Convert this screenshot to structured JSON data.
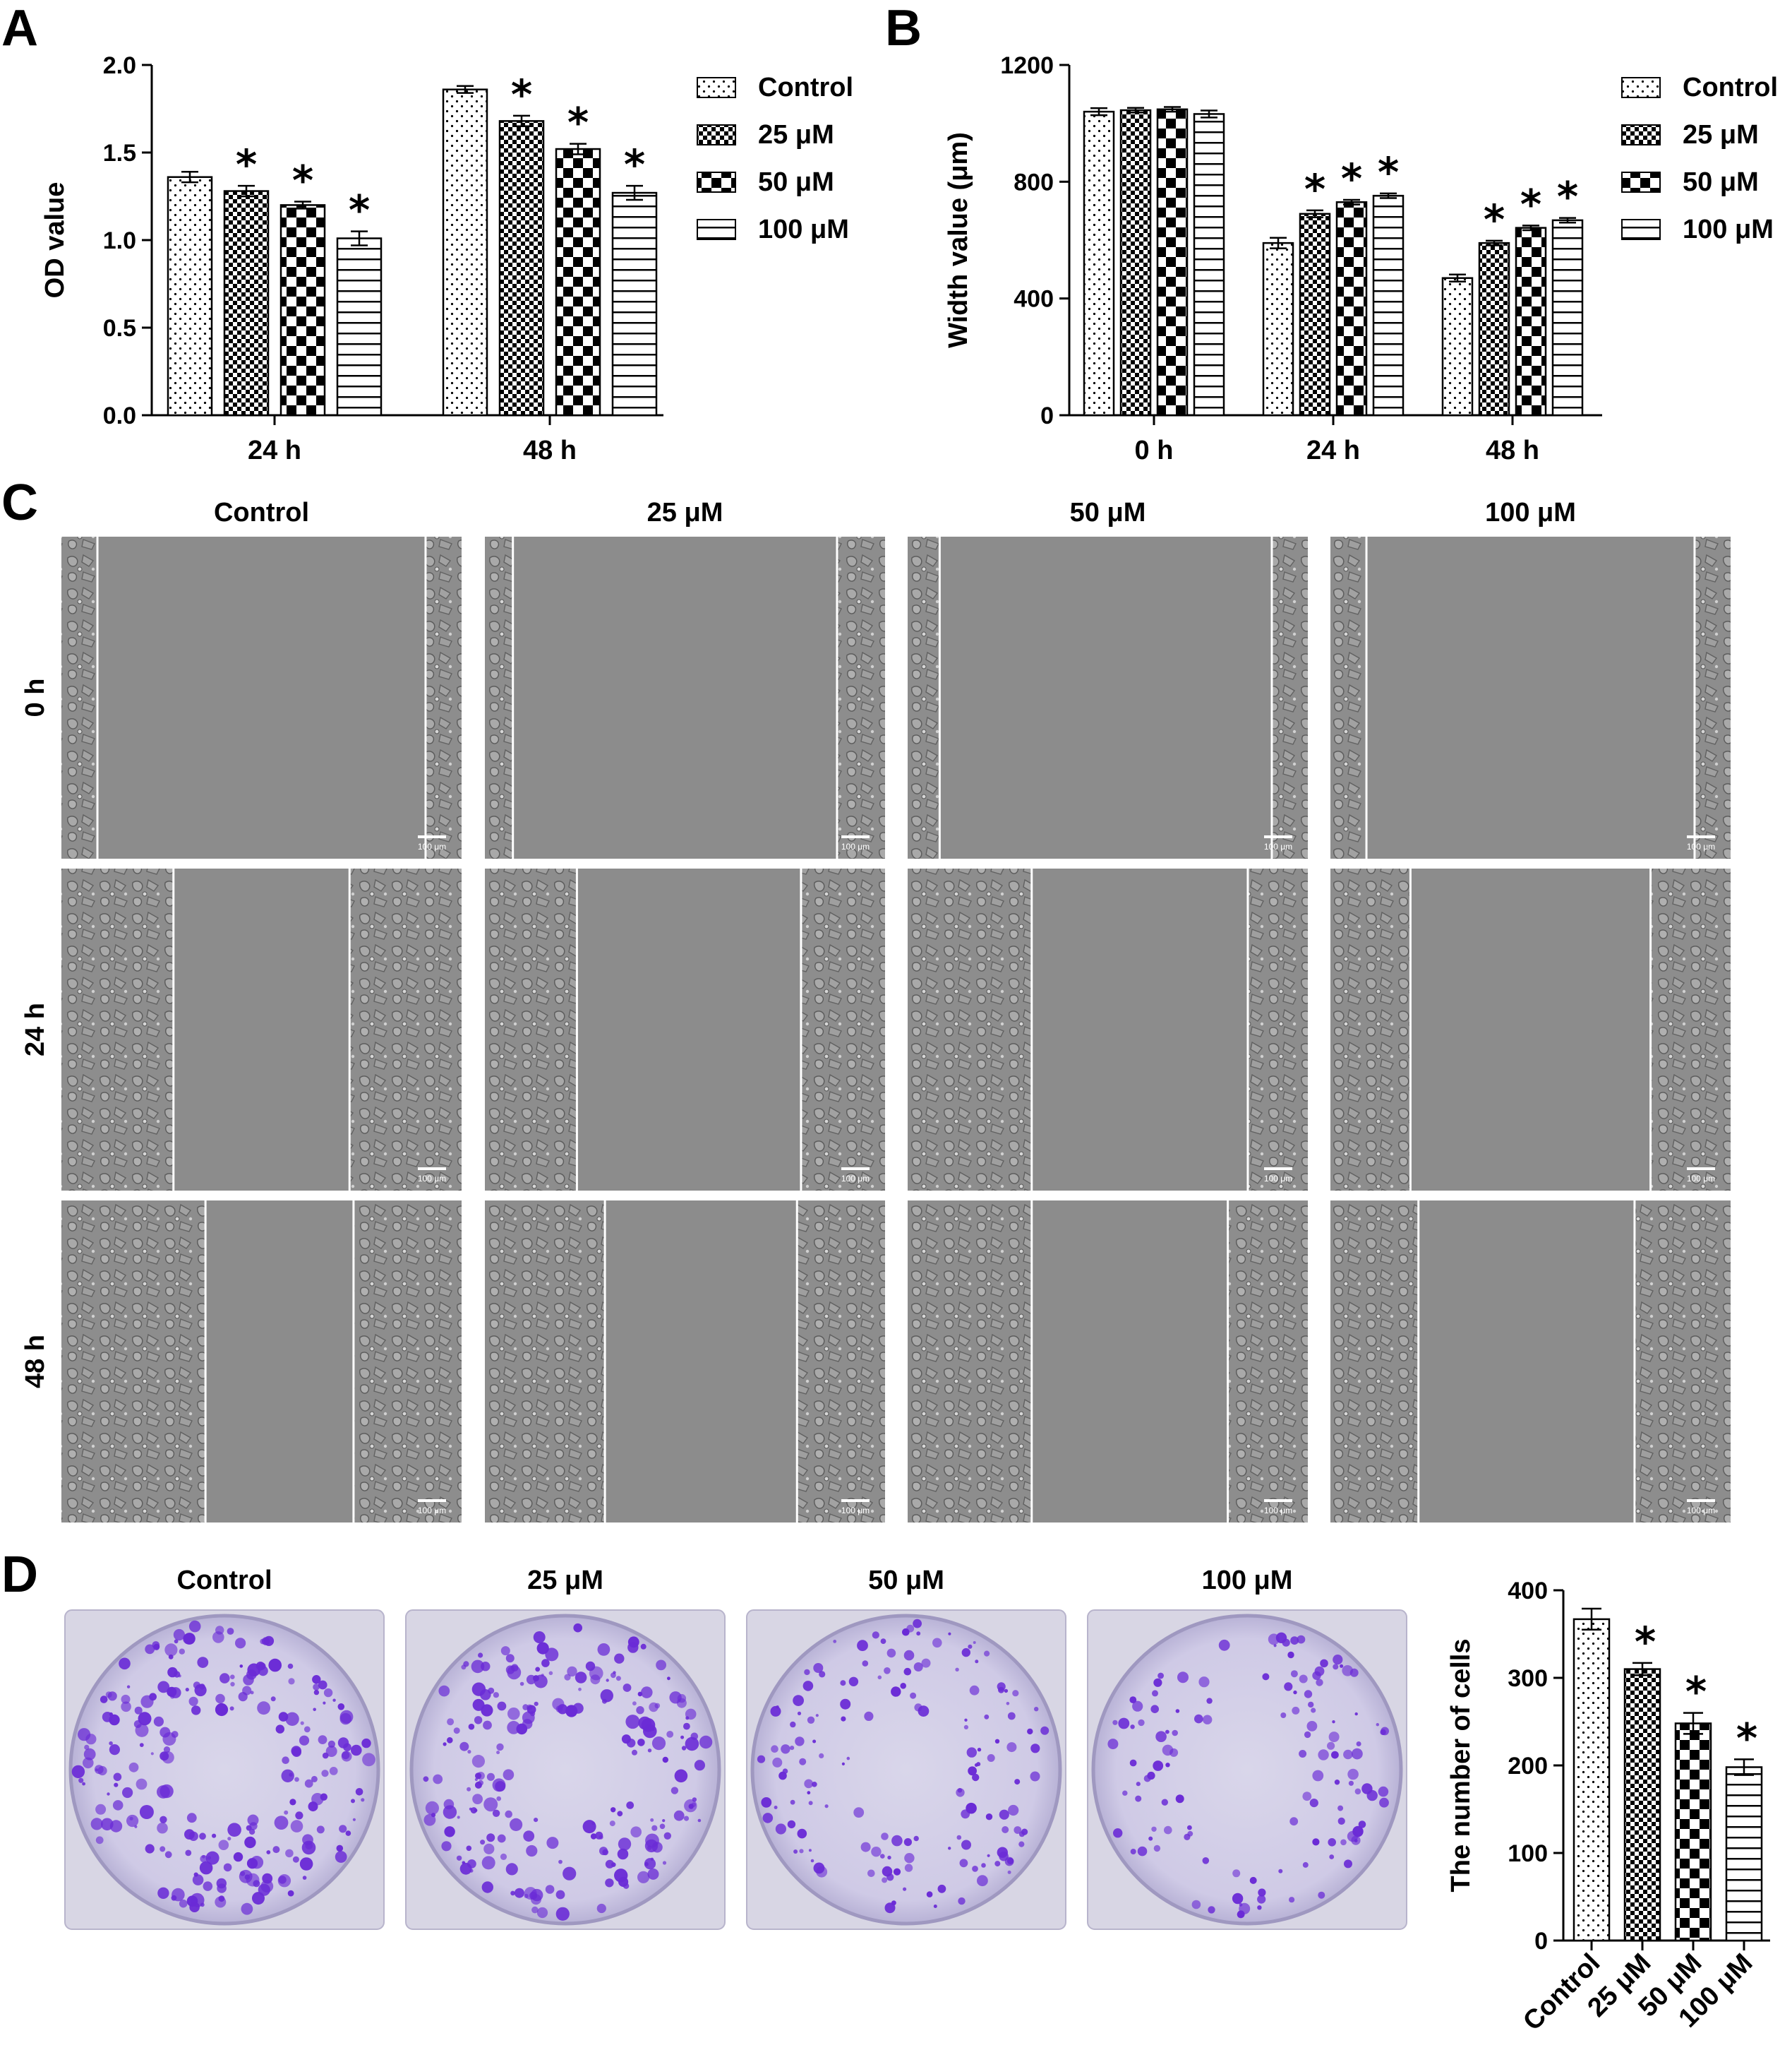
{
  "panels": {
    "A": "A",
    "B": "B",
    "C": "C",
    "D": "D"
  },
  "colors": {
    "cells": "#8f8f8f",
    "gap": "#8c8c8c",
    "stain": "#6a2bd6",
    "plate": "#c9c6dc"
  },
  "chart_data": [
    {
      "type": "bar",
      "panel": "A",
      "categories": [
        "24 h",
        "48 h"
      ],
      "series": [
        {
          "name": "Control",
          "values": [
            1.36,
            1.86
          ],
          "errors": [
            0.03,
            0.02
          ]
        },
        {
          "name": "25 μM",
          "values": [
            1.28,
            1.68
          ],
          "errors": [
            0.03,
            0.03
          ]
        },
        {
          "name": "50 μM",
          "values": [
            1.2,
            1.52
          ],
          "errors": [
            0.02,
            0.03
          ]
        },
        {
          "name": "100 μM",
          "values": [
            1.01,
            1.27
          ],
          "errors": [
            0.04,
            0.04
          ]
        }
      ],
      "significant": [
        [
          false,
          false
        ],
        [
          true,
          true
        ],
        [
          true,
          true
        ],
        [
          true,
          true
        ]
      ],
      "ylabel": "OD value",
      "ylim": [
        0,
        2.0
      ],
      "yticks": [
        "0.0",
        "0.5",
        "1.0",
        "1.5",
        "2.0"
      ],
      "legend": "right",
      "annotation": "*"
    },
    {
      "type": "bar",
      "panel": "B",
      "categories": [
        "0 h",
        "24 h",
        "48 h"
      ],
      "series": [
        {
          "name": "Control",
          "values": [
            1040,
            590,
            470
          ],
          "errors": [
            12,
            18,
            12
          ]
        },
        {
          "name": "25 μM",
          "values": [
            1045,
            690,
            590
          ],
          "errors": [
            8,
            12,
            8
          ]
        },
        {
          "name": "50 μM",
          "values": [
            1048,
            730,
            642
          ],
          "errors": [
            8,
            8,
            8
          ]
        },
        {
          "name": "100 μM",
          "values": [
            1032,
            752,
            668
          ],
          "errors": [
            12,
            8,
            8
          ]
        }
      ],
      "significant": [
        [
          false,
          false,
          false
        ],
        [
          false,
          true,
          true
        ],
        [
          false,
          true,
          true
        ],
        [
          false,
          true,
          true
        ]
      ],
      "ylabel": "Width value (μm)",
      "ylim": [
        0,
        1200
      ],
      "yticks": [
        "0",
        "400",
        "800",
        "1200"
      ],
      "legend": "right",
      "annotation": "*"
    },
    {
      "type": "bar",
      "panel": "D",
      "categories": [
        "Control",
        "25 μM",
        "50 μM",
        "100 μM"
      ],
      "values": [
        367,
        310,
        248,
        198
      ],
      "errors": [
        12,
        7,
        12,
        9
      ],
      "significant": [
        false,
        true,
        true,
        true
      ],
      "ylabel": "The number of cells",
      "ylim": [
        0,
        400
      ],
      "yticks": [
        "0",
        "100",
        "200",
        "300",
        "400"
      ],
      "annotation": "*"
    }
  ],
  "wound": {
    "columns": [
      "Control",
      "25 μM",
      "50 μM",
      "100 μM"
    ],
    "rows": [
      "0 h",
      "24 h",
      "48 h"
    ],
    "scale_label": "100 μm"
  },
  "colony": {
    "columns": [
      "Control",
      "25 μM",
      "50 μM",
      "100 μM"
    ]
  }
}
